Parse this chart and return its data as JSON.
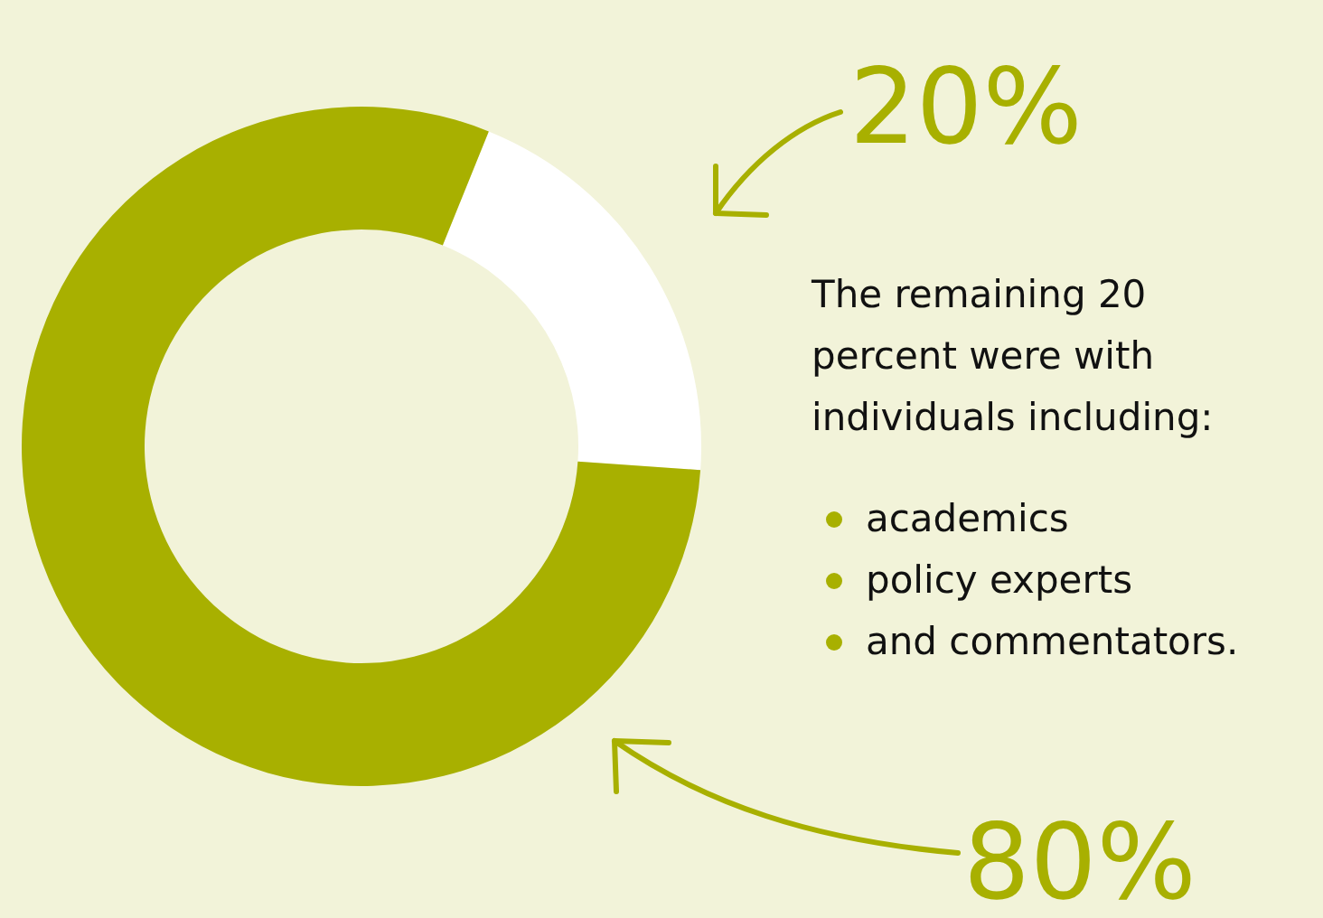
{
  "chart_data": {
    "type": "donut",
    "categories": [
      null,
      null
    ],
    "values": [
      20,
      80
    ],
    "colors": [
      "#ffffff",
      "#a8b000"
    ],
    "value_labels": [
      "20%",
      "80%"
    ],
    "annotations": [
      "The remaining 20 percent were with individuals including:",
      "academics",
      "policy experts",
      "and commentators."
    ]
  }
}
